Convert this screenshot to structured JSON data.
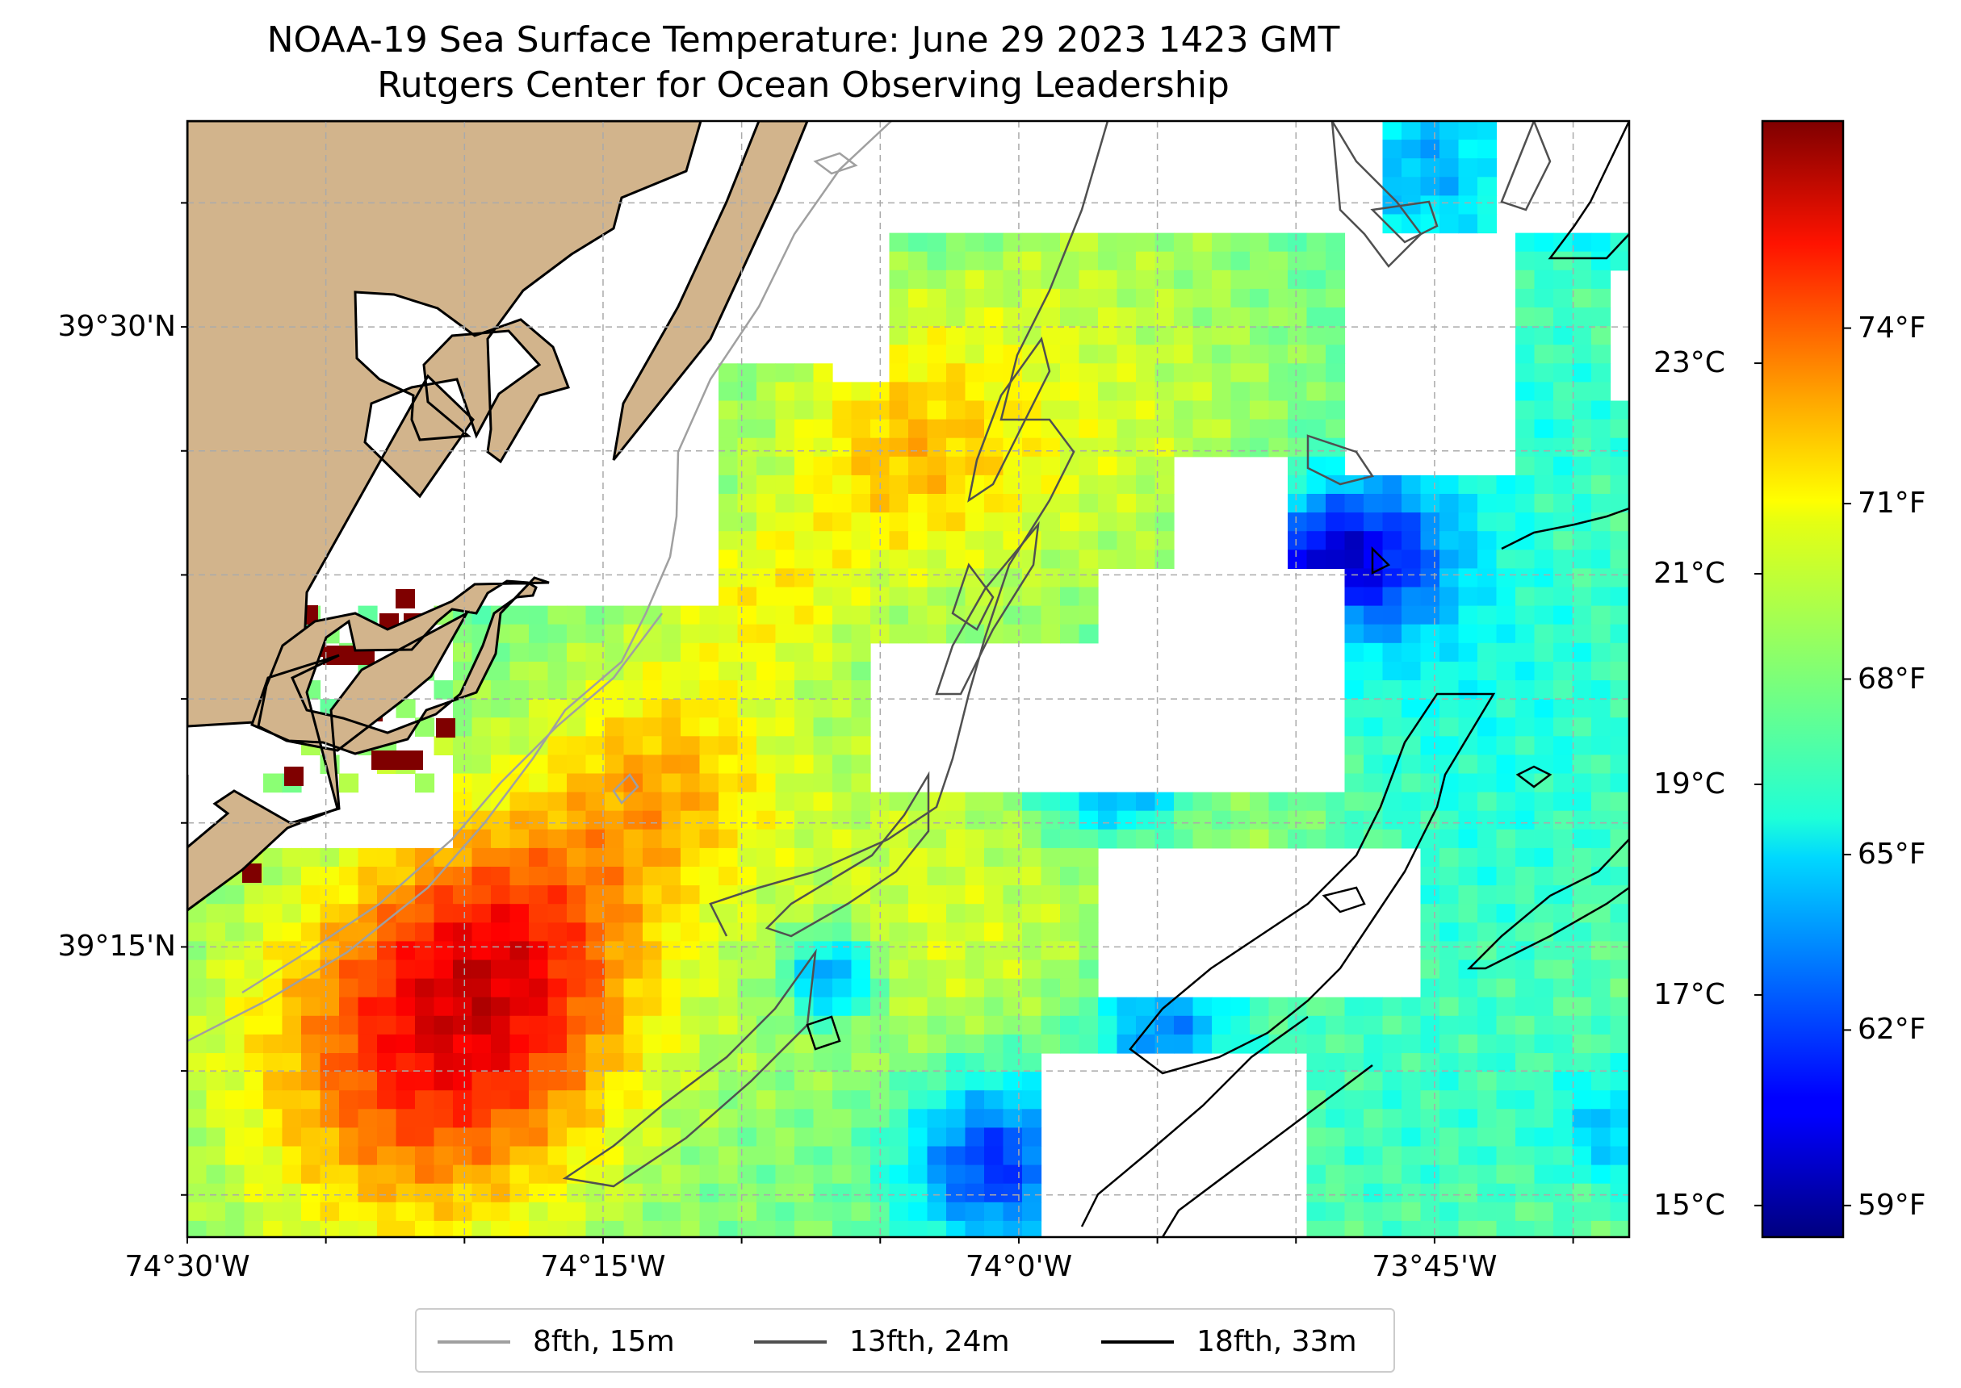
{
  "title": {
    "line1": "NOAA-19 Sea Surface Temperature: June 29 2023 1423 GMT",
    "line2": "Rutgers Center for Ocean Observing Leadership"
  },
  "map": {
    "extent": {
      "lon_west": -74.5,
      "lon_east": -73.633,
      "lat_south": 39.133,
      "lat_north": 39.583
    },
    "gridlines": true,
    "land_color": "#d2b48c",
    "missing_data_color": "#ffffff",
    "lat_ticks": [
      {
        "value": 39.5,
        "label": "39°30'N"
      },
      {
        "value": 39.25,
        "label": "39°15'N"
      }
    ],
    "lon_ticks": [
      {
        "value": -74.5,
        "label": "74°30'W"
      },
      {
        "value": -74.25,
        "label": "74°15'W"
      },
      {
        "value": -74.0,
        "label": "74°0'W"
      },
      {
        "value": -73.75,
        "label": "73°45'W"
      }
    ]
  },
  "colorbar": {
    "colormap": "jet",
    "range_c": [
      14.7,
      25.3
    ],
    "celsius_ticks": [
      {
        "value": 23,
        "label": "23°C"
      },
      {
        "value": 21,
        "label": "21°C"
      },
      {
        "value": 19,
        "label": "19°C"
      },
      {
        "value": 17,
        "label": "17°C"
      },
      {
        "value": 15,
        "label": "15°C"
      }
    ],
    "fahrenheit_ticks": [
      {
        "value": 74,
        "label": "74°F"
      },
      {
        "value": 71,
        "label": "71°F"
      },
      {
        "value": 68,
        "label": "68°F"
      },
      {
        "value": 65,
        "label": "65°F"
      },
      {
        "value": 62,
        "label": "62°F"
      },
      {
        "value": 59,
        "label": "59°F"
      }
    ]
  },
  "legend": {
    "placement": "bottom-center",
    "entries": [
      {
        "label": "8fth, 15m",
        "color": "#a0a0a0"
      },
      {
        "label": "13fth, 24m",
        "color": "#505050"
      },
      {
        "label": "18fth, 33m",
        "color": "#000000"
      }
    ]
  }
}
